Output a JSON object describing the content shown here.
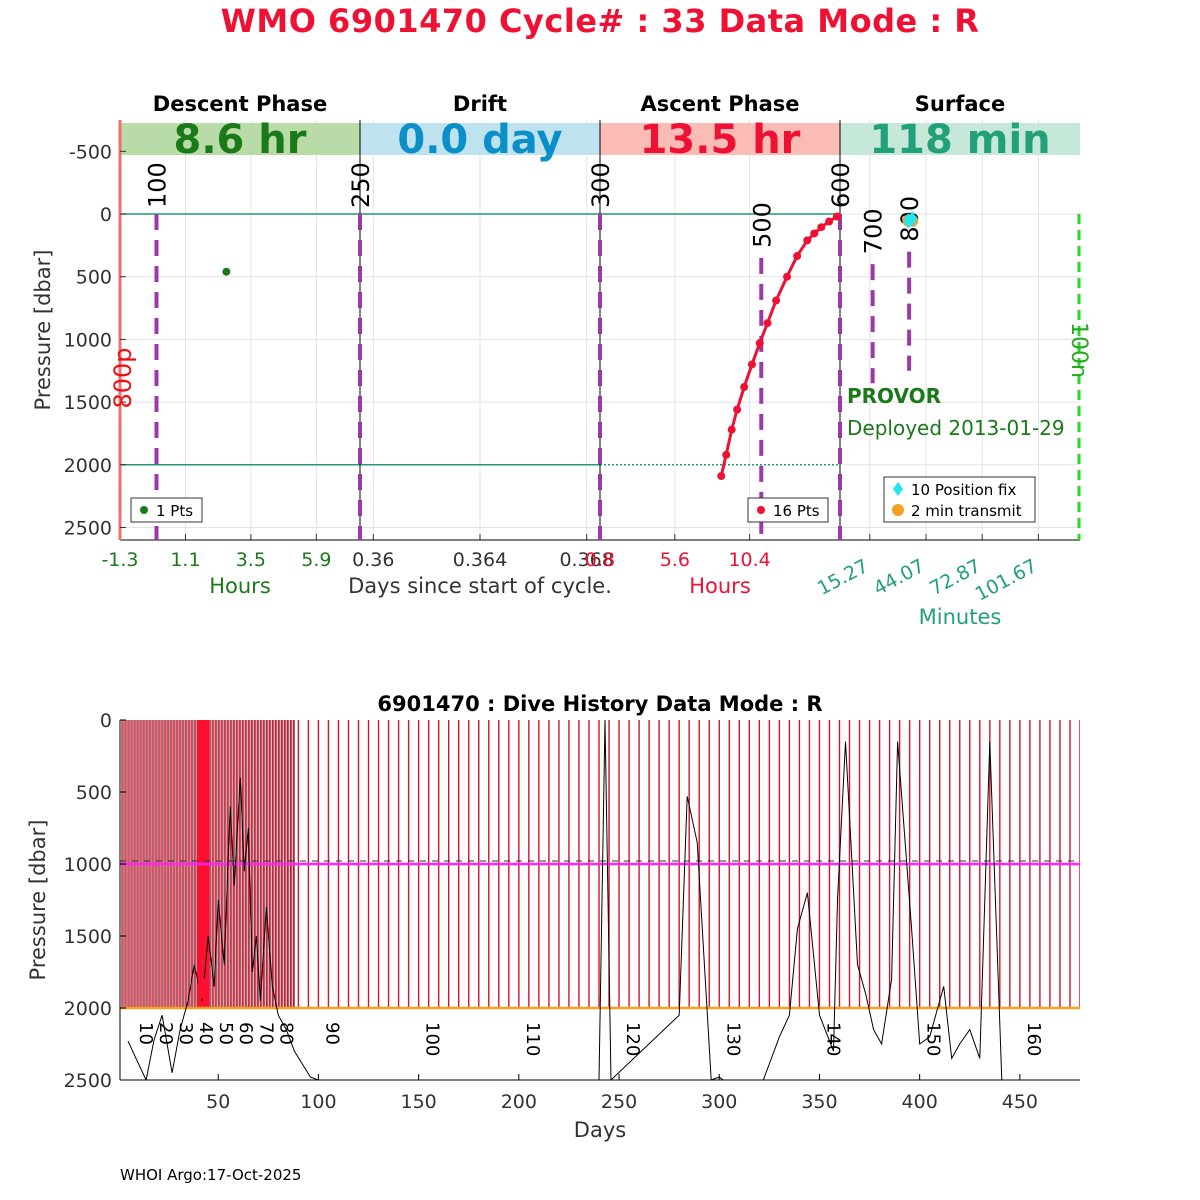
{
  "page": {
    "title": "WMO 6901470   Cycle# : 33   Data Mode : R",
    "footer": "WHOI Argo:17-Oct-2025"
  },
  "colors": {
    "title": "#ee1133",
    "descent": "#1a7a1a",
    "descent_band": "#b9dba8",
    "drift": "#0a8fc8",
    "drift_band": "#bfe3ee",
    "ascent": "#ee1133",
    "ascent_band": "#fbbcb6",
    "surface": "#22a07a",
    "surface_band": "#c5e8d8",
    "marker": "#9b3aa6",
    "ref_line": "#1f9a7a",
    "position": "#22e5ee",
    "transmit": "#f5a020",
    "history_line": "#d4142c",
    "history_drift": "#ff22ff",
    "history_park": "#f5a020",
    "bottom_ts": "#000000",
    "right_marker": "#22dd22"
  },
  "chart_data": [
    {
      "type": "line",
      "title": "Cycle profile",
      "ylabel": "Pressure [dbar]",
      "ylim": [
        2600,
        -750
      ],
      "yticks": [
        -500,
        0,
        500,
        1000,
        1500,
        2000,
        2500
      ],
      "xlabel": "Days since start of cycle.",
      "reference_pressures": [
        0,
        2000
      ],
      "panels": [
        {
          "name": "Descent Phase",
          "value": "8.6 hr",
          "unit_label": "Hours",
          "ticks": [
            "-1.3",
            "1.1",
            "3.5",
            "5.9"
          ],
          "tick_values": [
            -1.3,
            1.1,
            3.5,
            5.9
          ],
          "xlim": [
            -1.3,
            7.5
          ],
          "legend": "1 Pts",
          "points": [
            {
              "t": 2.6,
              "p": 460
            }
          ]
        },
        {
          "name": "Drift",
          "value": "0.0 day",
          "unit_label": "",
          "ticks": [
            "0.36",
            "0.364",
            "0.368"
          ],
          "tick_values": [
            0.36,
            0.364,
            0.368
          ],
          "xlim": [
            0.3595,
            0.3685
          ]
        },
        {
          "name": "Ascent Phase",
          "value": "13.5 hr",
          "unit_label": "Hours",
          "ticks": [
            "0.8",
            "5.6",
            "10.4"
          ],
          "tick_values": [
            0.8,
            5.6,
            10.4
          ],
          "xlim": [
            0.8,
            16.2
          ],
          "legend": "16 Pts",
          "points": [
            {
              "t": 8.58,
              "p": 2090
            },
            {
              "t": 8.9,
              "p": 1920
            },
            {
              "t": 9.25,
              "p": 1720
            },
            {
              "t": 9.6,
              "p": 1560
            },
            {
              "t": 10.05,
              "p": 1380
            },
            {
              "t": 10.55,
              "p": 1200
            },
            {
              "t": 11.05,
              "p": 1030
            },
            {
              "t": 11.55,
              "p": 870
            },
            {
              "t": 12.1,
              "p": 690
            },
            {
              "t": 12.8,
              "p": 500
            },
            {
              "t": 13.45,
              "p": 335
            },
            {
              "t": 14.1,
              "p": 210
            },
            {
              "t": 14.55,
              "p": 155
            },
            {
              "t": 15.0,
              "p": 105
            },
            {
              "t": 15.5,
              "p": 60
            },
            {
              "t": 16.0,
              "p": 20
            }
          ]
        },
        {
          "name": "Surface",
          "value": "118 min",
          "unit_label": "Minutes",
          "ticks": [
            "15.27",
            "44.07",
            "72.87",
            "101.67"
          ],
          "tick_values": [
            15.27,
            44.07,
            72.87,
            101.67
          ],
          "xlim": [
            0,
            123
          ],
          "legend_items": [
            "10 Position fix",
            "2 min transmit"
          ],
          "position_fixes": [
            {
              "t": 35.0,
              "p": 55
            },
            {
              "t": 37.0,
              "p": 40
            }
          ],
          "transmits": [
            {
              "t": 35.0,
              "p": 55
            },
            {
              "t": 37.0,
              "p": 55
            }
          ]
        }
      ],
      "markers": [
        {
          "label": "100",
          "x_frac": 0.038,
          "p_top": 0,
          "p_bottom": 2600
        },
        {
          "label": "250",
          "x_frac": 0.25,
          "p_top": 0,
          "p_bottom": 2600
        },
        {
          "label": "300",
          "x_frac": 0.5,
          "p_top": 0,
          "p_bottom": 2600
        },
        {
          "label": "500",
          "x_frac": 0.668,
          "p_top": 350,
          "p_bottom": 2600
        },
        {
          "label": "600",
          "x_frac": 0.75,
          "p_top": 0,
          "p_bottom": 2600
        },
        {
          "label": "700",
          "x_frac": 0.784,
          "p_top": 400,
          "p_bottom": 1350
        },
        {
          "label": "800",
          "x_frac": 0.822,
          "p_top": 300,
          "p_bottom": 1250
        }
      ],
      "side_labels": {
        "left": "800p",
        "right": "100n"
      },
      "float_info": {
        "type": "PROVOR",
        "deployed": "Deployed 2013-01-29"
      }
    },
    {
      "type": "line",
      "title": "6901470 : Dive History      Data Mode : R",
      "xlabel": "Days",
      "ylabel": "Pressure [dbar]",
      "xlim": [
        1,
        480
      ],
      "ylim": [
        2500,
        0
      ],
      "xticks": [
        50,
        100,
        150,
        200,
        250,
        300,
        350,
        400,
        450
      ],
      "yticks": [
        0,
        500,
        1000,
        1500,
        2000,
        2500
      ],
      "drift_pressure": 1000,
      "park_pressure": 2000,
      "cycle_days_dense": [
        2,
        88,
        1.5
      ],
      "cycle_days_sparse": [
        90,
        480,
        5
      ],
      "cycle_labels": [
        {
          "label": "10",
          "day": 10
        },
        {
          "label": "20",
          "day": 20
        },
        {
          "label": "30",
          "day": 30
        },
        {
          "label": "40",
          "day": 40
        },
        {
          "label": "50",
          "day": 50
        },
        {
          "label": "60",
          "day": 60
        },
        {
          "label": "70",
          "day": 70
        },
        {
          "label": "80",
          "day": 80
        },
        {
          "label": "90",
          "day": 103
        },
        {
          "label": "100",
          "day": 153
        },
        {
          "label": "110",
          "day": 203
        },
        {
          "label": "120",
          "day": 253
        },
        {
          "label": "130",
          "day": 303
        },
        {
          "label": "140",
          "day": 353
        },
        {
          "label": "150",
          "day": 403
        },
        {
          "label": "160",
          "day": 453
        }
      ],
      "bottom_series": [
        [
          5,
          2230
        ],
        [
          9,
          2350
        ],
        [
          14,
          2500
        ],
        [
          18,
          2220
        ],
        [
          22,
          2050
        ],
        [
          27,
          2450
        ],
        [
          31,
          2150
        ],
        [
          35,
          1950
        ],
        [
          38,
          1700
        ],
        [
          42,
          1950
        ],
        [
          45,
          1500
        ],
        [
          48,
          1850
        ],
        [
          50,
          1250
        ],
        [
          53,
          1700
        ],
        [
          56,
          600
        ],
        [
          58,
          1150
        ],
        [
          61,
          400
        ],
        [
          63,
          1050
        ],
        [
          65,
          750
        ],
        [
          67,
          1750
        ],
        [
          69,
          1500
        ],
        [
          71,
          1950
        ],
        [
          74,
          1300
        ],
        [
          77,
          1850
        ],
        [
          80,
          2050
        ],
        [
          84,
          2150
        ],
        [
          88,
          2300
        ],
        [
          96,
          2480
        ],
        [
          100,
          2500
        ],
        [
          240,
          2500
        ],
        [
          243,
          0
        ],
        [
          246,
          2500
        ],
        [
          280,
          2050
        ],
        [
          284,
          530
        ],
        [
          289,
          850
        ],
        [
          296,
          2500
        ],
        [
          300,
          2480
        ],
        [
          302,
          2500
        ],
        [
          322,
          2500
        ],
        [
          330,
          2200
        ],
        [
          335,
          2050
        ],
        [
          339,
          1450
        ],
        [
          344,
          1200
        ],
        [
          350,
          2050
        ],
        [
          357,
          2300
        ],
        [
          359,
          1250
        ],
        [
          363,
          150
        ],
        [
          369,
          1700
        ],
        [
          373,
          1900
        ],
        [
          377,
          2150
        ],
        [
          381,
          2250
        ],
        [
          386,
          1800
        ],
        [
          389,
          150
        ],
        [
          396,
          1450
        ],
        [
          400,
          2250
        ],
        [
          405,
          2200
        ],
        [
          412,
          1850
        ],
        [
          416,
          2350
        ],
        [
          420,
          2250
        ],
        [
          425,
          2150
        ],
        [
          430,
          2350
        ],
        [
          435,
          150
        ],
        [
          441,
          2500
        ]
      ],
      "highlight": {
        "day": 42,
        "pressure": 1850
      }
    }
  ]
}
